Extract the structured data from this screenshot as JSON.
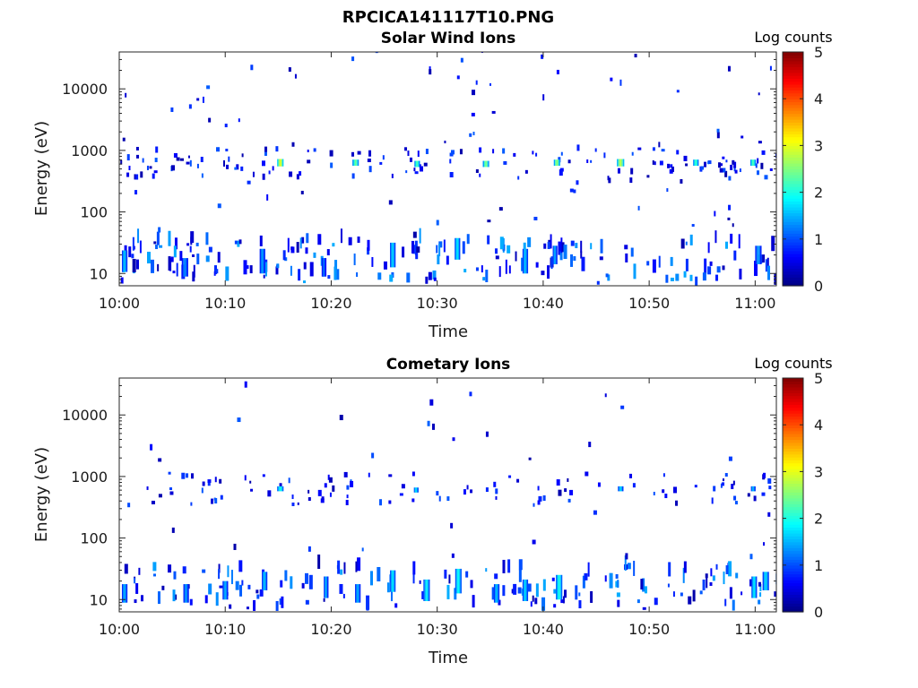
{
  "figure": {
    "title": "RPCICA141117T10.PNG"
  },
  "colors": {
    "colormap": [
      "#00007f",
      "#0000ff",
      "#0080ff",
      "#00ffff",
      "#80ff80",
      "#ffff00",
      "#ff8000",
      "#ff0000",
      "#7f0000"
    ]
  },
  "chart_data": [
    {
      "type": "heatmap",
      "title": "Solar Wind Ions",
      "subtitle": "",
      "xlabel": "Time",
      "ylabel": "Energy (eV)",
      "x_ticks": [
        "10:00",
        "10:10",
        "10:20",
        "10:30",
        "10:40",
        "10:50",
        "11:00"
      ],
      "y_ticks": [
        "10",
        "100",
        "1000",
        "10000"
      ],
      "y_scale": "log",
      "xlim_minutes": [
        0,
        62
      ],
      "ylim_log10": [
        0.8,
        4.6
      ],
      "colorbar": {
        "label": "Log counts",
        "ticks": [
          "0",
          "1",
          "2",
          "3",
          "4",
          "5"
        ],
        "range": [
          0,
          5
        ]
      },
      "features": [
        {
          "t": 0.5,
          "e": 1.2,
          "w": 0.5,
          "h": 0.35,
          "v": 1.6
        },
        {
          "t": 6.2,
          "e": 1.1,
          "w": 0.6,
          "h": 0.3,
          "v": 1.3
        },
        {
          "t": 13.5,
          "e": 1.2,
          "w": 0.5,
          "h": 0.4,
          "v": 1.4
        },
        {
          "t": 19.3,
          "e": 1.1,
          "w": 0.4,
          "h": 0.3,
          "v": 1.2
        },
        {
          "t": 25.8,
          "e": 1.3,
          "w": 0.5,
          "h": 0.4,
          "v": 1.7
        },
        {
          "t": 31.9,
          "e": 1.4,
          "w": 0.5,
          "h": 0.35,
          "v": 1.8
        },
        {
          "t": 38.3,
          "e": 1.2,
          "w": 0.5,
          "h": 0.4,
          "v": 1.6
        },
        {
          "t": 41.1,
          "e": 1.3,
          "w": 0.4,
          "h": 0.3,
          "v": 1.5
        },
        {
          "t": 60.3,
          "e": 1.3,
          "w": 0.6,
          "h": 0.3,
          "v": 1.4
        },
        {
          "t": 15.2,
          "e": 2.8,
          "w": 0.6,
          "h": 0.12,
          "v": 3.0
        },
        {
          "t": 22.3,
          "e": 2.8,
          "w": 0.6,
          "h": 0.1,
          "v": 2.4
        },
        {
          "t": 28.1,
          "e": 2.78,
          "w": 0.5,
          "h": 0.1,
          "v": 2.3
        },
        {
          "t": 34.6,
          "e": 2.78,
          "w": 0.6,
          "h": 0.1,
          "v": 2.5
        },
        {
          "t": 41.3,
          "e": 2.8,
          "w": 0.6,
          "h": 0.1,
          "v": 2.6
        },
        {
          "t": 47.3,
          "e": 2.8,
          "w": 0.7,
          "h": 0.12,
          "v": 2.8
        },
        {
          "t": 54.4,
          "e": 2.8,
          "w": 0.5,
          "h": 0.1,
          "v": 2.2
        },
        {
          "t": 59.8,
          "e": 2.8,
          "w": 0.5,
          "h": 0.1,
          "v": 2.3
        }
      ]
    },
    {
      "type": "heatmap",
      "title": "Cometary Ions",
      "subtitle": "",
      "xlabel": "Time",
      "ylabel": "Energy (eV)",
      "x_ticks": [
        "10:00",
        "10:10",
        "10:20",
        "10:30",
        "10:40",
        "10:50",
        "11:00"
      ],
      "y_ticks": [
        "10",
        "100",
        "1000",
        "10000"
      ],
      "y_scale": "log",
      "xlim_minutes": [
        0,
        62
      ],
      "ylim_log10": [
        0.8,
        4.6
      ],
      "colorbar": {
        "label": "Log counts",
        "ticks": [
          "0",
          "1",
          "2",
          "3",
          "4",
          "5"
        ],
        "range": [
          0,
          5
        ]
      },
      "features": [
        {
          "t": 0.5,
          "e": 1.1,
          "w": 0.5,
          "h": 0.3,
          "v": 1.5
        },
        {
          "t": 6.3,
          "e": 1.1,
          "w": 0.5,
          "h": 0.3,
          "v": 1.4
        },
        {
          "t": 10.0,
          "e": 1.15,
          "w": 0.5,
          "h": 0.3,
          "v": 1.5
        },
        {
          "t": 13.7,
          "e": 1.3,
          "w": 0.5,
          "h": 0.3,
          "v": 1.6
        },
        {
          "t": 19.5,
          "e": 1.2,
          "w": 0.4,
          "h": 0.35,
          "v": 1.5
        },
        {
          "t": 22.5,
          "e": 1.1,
          "w": 0.5,
          "h": 0.3,
          "v": 1.5
        },
        {
          "t": 25.8,
          "e": 1.3,
          "w": 0.5,
          "h": 0.35,
          "v": 1.8
        },
        {
          "t": 29.0,
          "e": 1.15,
          "w": 0.6,
          "h": 0.35,
          "v": 1.8
        },
        {
          "t": 32.0,
          "e": 1.3,
          "w": 0.6,
          "h": 0.4,
          "v": 1.9
        },
        {
          "t": 35.6,
          "e": 1.1,
          "w": 0.5,
          "h": 0.3,
          "v": 1.6
        },
        {
          "t": 38.3,
          "e": 1.15,
          "w": 0.5,
          "h": 0.35,
          "v": 1.7
        },
        {
          "t": 41.5,
          "e": 1.2,
          "w": 0.6,
          "h": 0.4,
          "v": 2.0
        },
        {
          "t": 59.9,
          "e": 1.2,
          "w": 0.5,
          "h": 0.35,
          "v": 1.8
        },
        {
          "t": 61.0,
          "e": 1.3,
          "w": 0.6,
          "h": 0.3,
          "v": 1.7
        },
        {
          "t": 15.2,
          "e": 2.8,
          "w": 0.6,
          "h": 0.08,
          "v": 2.0
        },
        {
          "t": 28.0,
          "e": 2.78,
          "w": 0.4,
          "h": 0.08,
          "v": 1.8
        },
        {
          "t": 47.3,
          "e": 2.8,
          "w": 0.5,
          "h": 0.08,
          "v": 1.7
        },
        {
          "t": 59.8,
          "e": 2.8,
          "w": 0.4,
          "h": 0.08,
          "v": 1.6
        }
      ]
    }
  ]
}
